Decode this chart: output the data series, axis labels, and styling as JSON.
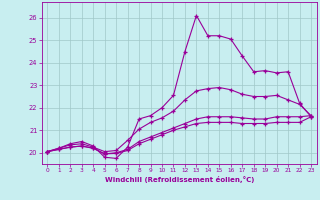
{
  "xlabel": "Windchill (Refroidissement éolien,°C)",
  "xlim": [
    -0.5,
    23.5
  ],
  "ylim": [
    19.5,
    26.7
  ],
  "yticks": [
    20,
    21,
    22,
    23,
    24,
    25,
    26
  ],
  "xticks": [
    0,
    1,
    2,
    3,
    4,
    5,
    6,
    7,
    8,
    9,
    10,
    11,
    12,
    13,
    14,
    15,
    16,
    17,
    18,
    19,
    20,
    21,
    22,
    23
  ],
  "bg_color": "#c8eef0",
  "line_color": "#990099",
  "grid_color": "#a0c8c8",
  "curve1": [
    20.05,
    20.2,
    20.4,
    20.5,
    20.3,
    19.8,
    19.75,
    20.25,
    21.5,
    21.65,
    22.0,
    22.55,
    24.5,
    26.1,
    25.2,
    25.2,
    25.05,
    24.3,
    23.6,
    23.65,
    23.55,
    23.6,
    22.2,
    21.6
  ],
  "curve2": [
    20.05,
    20.2,
    20.35,
    20.4,
    20.25,
    20.05,
    20.1,
    20.55,
    21.05,
    21.35,
    21.55,
    21.85,
    22.35,
    22.75,
    22.85,
    22.9,
    22.8,
    22.6,
    22.5,
    22.5,
    22.55,
    22.35,
    22.15,
    21.65
  ],
  "curve3": [
    20.05,
    20.15,
    20.25,
    20.3,
    20.2,
    19.95,
    20.0,
    20.15,
    20.5,
    20.7,
    20.9,
    21.1,
    21.3,
    21.5,
    21.6,
    21.6,
    21.6,
    21.55,
    21.5,
    21.5,
    21.6,
    21.6,
    21.6,
    21.65
  ],
  "curve4": [
    20.05,
    20.15,
    20.25,
    20.3,
    20.2,
    19.95,
    19.97,
    20.1,
    20.4,
    20.6,
    20.8,
    21.0,
    21.15,
    21.3,
    21.35,
    21.35,
    21.35,
    21.3,
    21.3,
    21.3,
    21.35,
    21.35,
    21.35,
    21.6
  ]
}
